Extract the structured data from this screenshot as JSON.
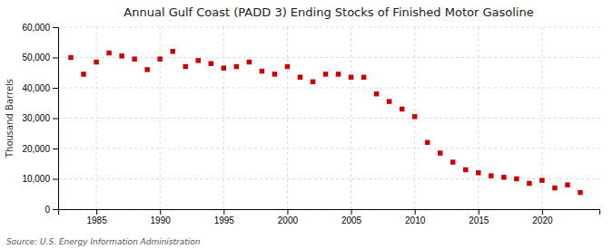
{
  "chart_data": {
    "type": "scatter",
    "title": "Annual Gulf Coast (PADD 3) Ending Stocks of Finished Motor Gasoline",
    "ylabel": "Thousand Barrels",
    "source": "Source: U.S. Energy Information Administration",
    "x": [
      1983,
      1984,
      1985,
      1986,
      1987,
      1988,
      1989,
      1990,
      1991,
      1992,
      1993,
      1994,
      1995,
      1996,
      1997,
      1998,
      1999,
      2000,
      2001,
      2002,
      2003,
      2004,
      2005,
      2006,
      2007,
      2008,
      2009,
      2010,
      2011,
      2012,
      2013,
      2014,
      2015,
      2016,
      2017,
      2018,
      2019,
      2020,
      2021,
      2022,
      2023
    ],
    "values": [
      50000,
      44500,
      48500,
      51500,
      50500,
      49500,
      46000,
      49500,
      52000,
      47000,
      49000,
      48000,
      46500,
      47000,
      48500,
      45500,
      44500,
      47000,
      43500,
      42000,
      44500,
      44500,
      43500,
      43500,
      38000,
      35500,
      33000,
      30500,
      22000,
      18500,
      15500,
      13000,
      12000,
      11000,
      10500,
      10000,
      8500,
      9500,
      7000,
      8000,
      5500
    ],
    "color": "#cc0000",
    "marker": "square",
    "grid": true,
    "xlim": [
      1982,
      2024.5
    ],
    "xticks": [
      1985,
      1990,
      1995,
      2000,
      2005,
      2010,
      2015,
      2020
    ],
    "ylim": [
      0,
      60000
    ],
    "yticks": [
      0,
      {
        "value": 10000,
        "label": "10,000"
      },
      {
        "value": 20000,
        "label": "20,000"
      },
      {
        "value": 30000,
        "label": "30,000"
      },
      {
        "value": 40000,
        "label": "40,000"
      },
      {
        "value": 50000,
        "label": "50,000"
      },
      {
        "value": 60000,
        "label": "60,000"
      }
    ]
  }
}
